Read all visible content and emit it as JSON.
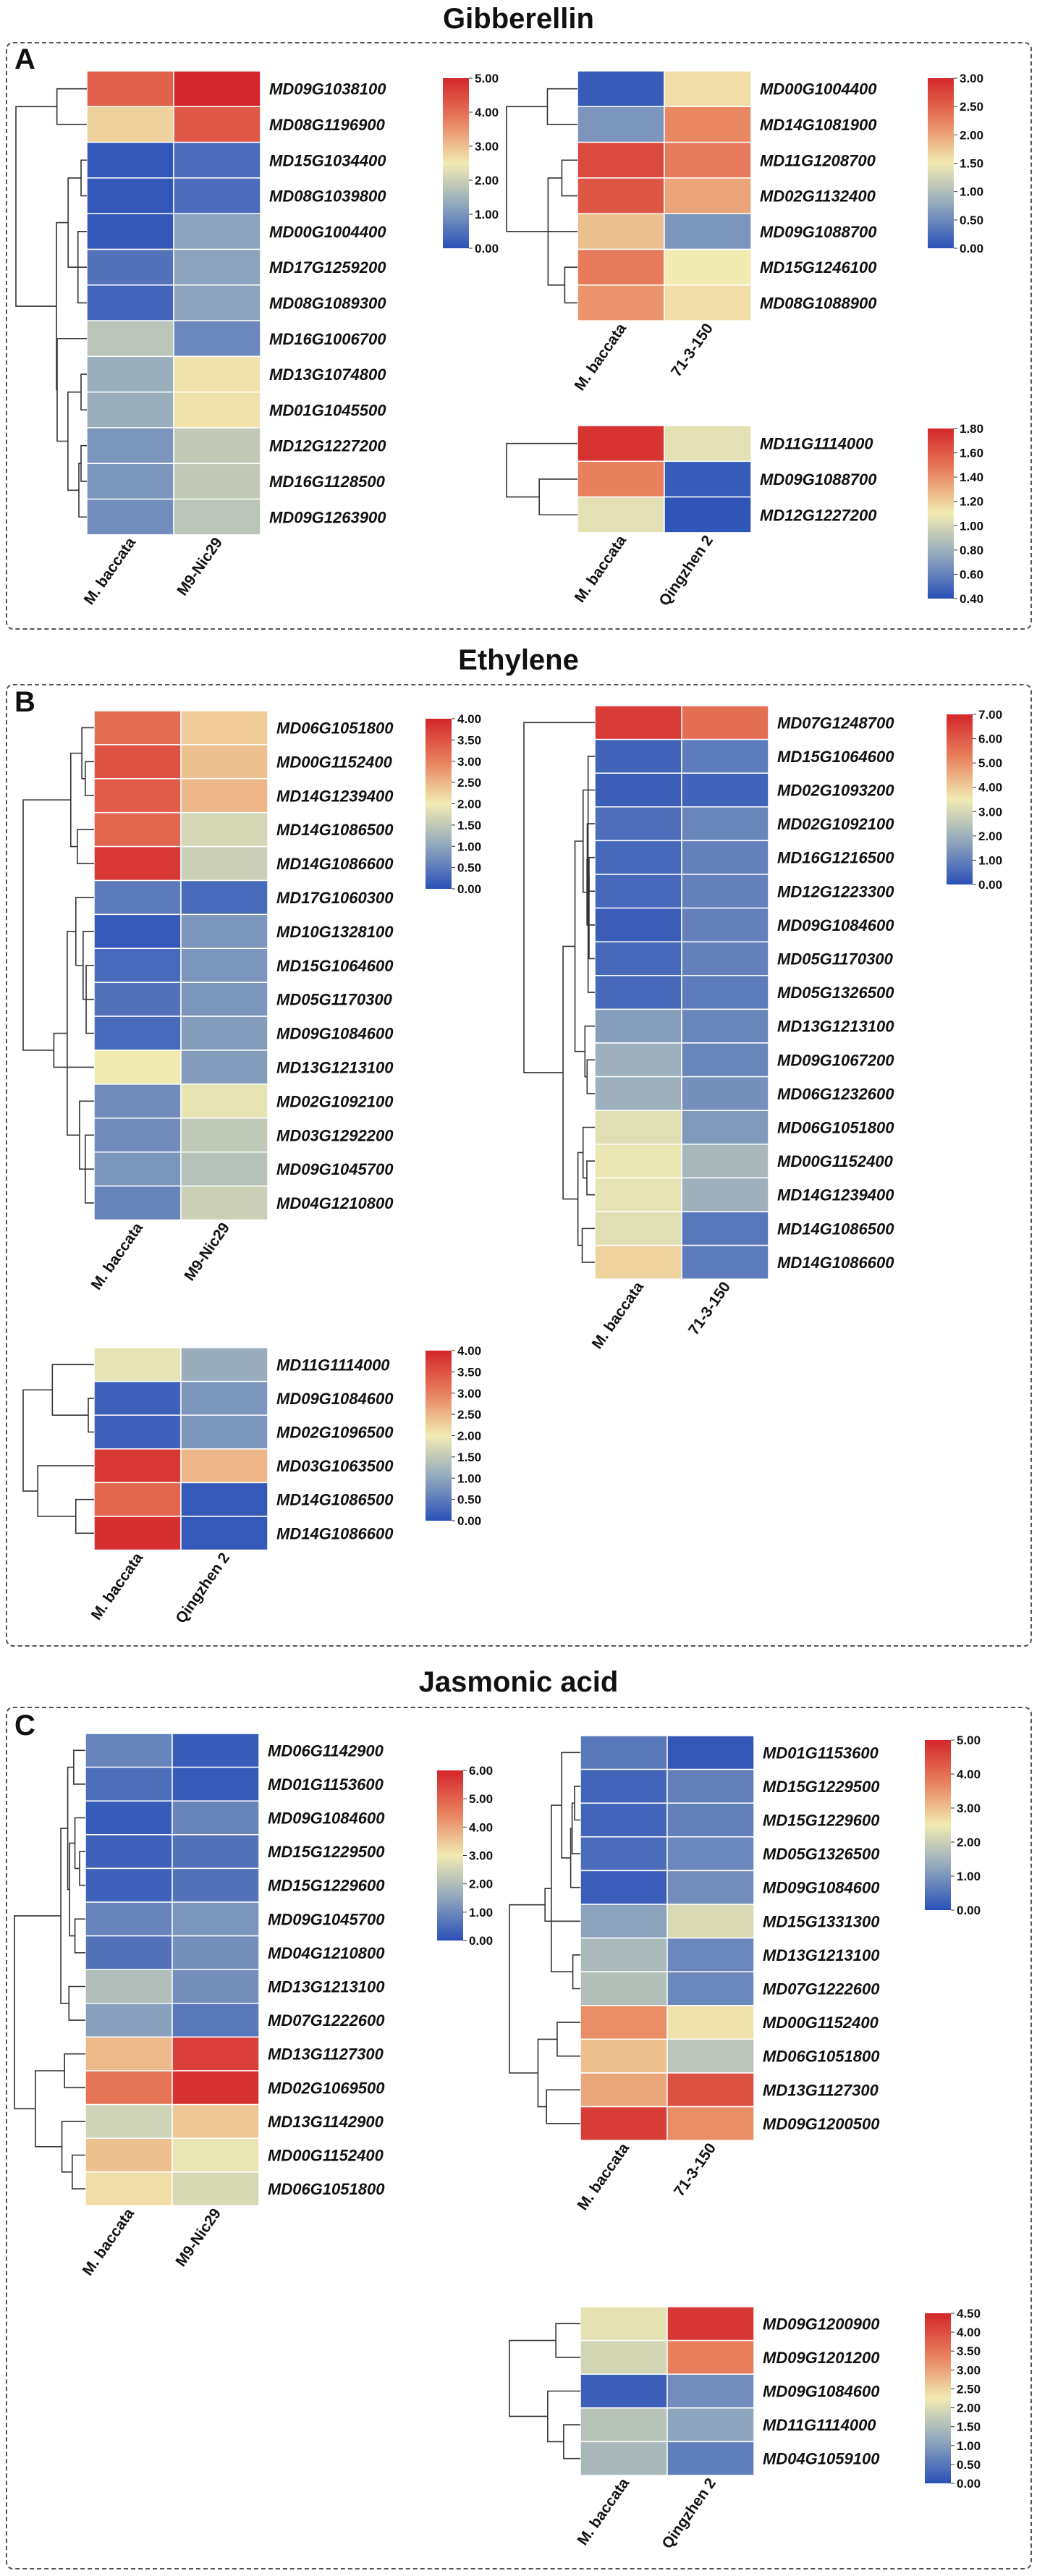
{
  "sections": [
    {
      "letter": "A",
      "title": "Gibberellin"
    },
    {
      "letter": "B",
      "title": "Ethylene"
    },
    {
      "letter": "C",
      "title": "Jasmonic acid"
    }
  ],
  "chart_data": [
    {
      "id": "gib1",
      "type": "heatmap",
      "section": "A",
      "columns": [
        "M. baccata",
        "M9-Nic29"
      ],
      "rows": [
        "MD09G1038100",
        "MD08G1196900",
        "MD15G1034400",
        "MD08G1039800",
        "MD00G1004400",
        "MD17G1259200",
        "MD08G1089300",
        "MD16G1006700",
        "MD13G1074800",
        "MD01G1045500",
        "MD12G1227200",
        "MD16G1128500",
        "MD09G1263900"
      ],
      "values": [
        [
          4.2,
          5.0
        ],
        [
          2.8,
          4.3
        ],
        [
          0.1,
          0.4
        ],
        [
          0.1,
          0.4
        ],
        [
          0.1,
          1.2
        ],
        [
          0.5,
          1.2
        ],
        [
          0.3,
          1.2
        ],
        [
          1.8,
          0.8
        ],
        [
          1.4,
          2.6
        ],
        [
          1.4,
          2.6
        ],
        [
          1.0,
          1.9
        ],
        [
          1.0,
          1.9
        ],
        [
          0.9,
          1.8
        ]
      ],
      "colorbar": {
        "min": 0.0,
        "max": 5.0,
        "ticks": [
          "5.00",
          "4.00",
          "3.00",
          "2.00",
          "1.00",
          "0.00"
        ]
      }
    },
    {
      "id": "gib2",
      "type": "heatmap",
      "section": "A",
      "columns": [
        "M. baccata",
        "71-3-150"
      ],
      "rows": [
        "MD00G1004400",
        "MD14G1081900",
        "MD11G1208700",
        "MD02G1132400",
        "MD09G1088700",
        "MD15G1246100",
        "MD08G1088900"
      ],
      "values": [
        [
          0.1,
          1.6
        ],
        [
          0.6,
          2.2
        ],
        [
          2.7,
          2.3
        ],
        [
          2.6,
          2.0
        ],
        [
          1.8,
          0.6
        ],
        [
          2.3,
          1.5
        ],
        [
          2.1,
          1.6
        ]
      ],
      "colorbar": {
        "min": 0.0,
        "max": 3.0,
        "ticks": [
          "3.00",
          "2.50",
          "2.00",
          "1.50",
          "1.00",
          "0.50",
          "0.00"
        ]
      }
    },
    {
      "id": "gib3",
      "type": "heatmap",
      "section": "A",
      "columns": [
        "M. baccata",
        "Qingzhen 2"
      ],
      "rows": [
        "MD11G1114000",
        "MD09G1088700",
        "MD12G1227200"
      ],
      "values": [
        [
          1.75,
          1.05
        ],
        [
          1.45,
          0.45
        ],
        [
          1.05,
          0.42
        ]
      ],
      "colorbar": {
        "min": 0.4,
        "max": 1.8,
        "ticks": [
          "1.80",
          "1.60",
          "1.40",
          "1.20",
          "1.00",
          "0.80",
          "0.60",
          "0.40"
        ]
      }
    },
    {
      "id": "eth1",
      "type": "heatmap",
      "section": "B",
      "columns": [
        "M. baccata",
        "M9-Nic29"
      ],
      "rows": [
        "MD06G1051800",
        "MD00G1152400",
        "MD14G1239400",
        "MD14G1086500",
        "MD14G1086600",
        "MD17G1060300",
        "MD10G1328100",
        "MD15G1064600",
        "MD05G1170300",
        "MD09G1084600",
        "MD13G1213100",
        "MD02G1092100",
        "MD03G1292200",
        "MD09G1045700",
        "MD04G1210800"
      ],
      "values": [
        [
          3.2,
          2.3
        ],
        [
          3.5,
          2.4
        ],
        [
          3.4,
          2.5
        ],
        [
          3.3,
          1.7
        ],
        [
          3.8,
          1.6
        ],
        [
          0.5,
          0.3
        ],
        [
          0.1,
          0.8
        ],
        [
          0.3,
          0.8
        ],
        [
          0.4,
          0.8
        ],
        [
          0.3,
          0.9
        ],
        [
          2.0,
          0.9
        ],
        [
          0.7,
          1.9
        ],
        [
          0.7,
          1.5
        ],
        [
          0.8,
          1.4
        ],
        [
          0.6,
          1.6
        ]
      ],
      "colorbar": {
        "min": 0.0,
        "max": 4.0,
        "ticks": [
          "4.00",
          "3.50",
          "3.00",
          "2.50",
          "2.00",
          "1.50",
          "1.00",
          "0.50",
          "0.00"
        ]
      }
    },
    {
      "id": "eth2",
      "type": "heatmap",
      "section": "B",
      "columns": [
        "M. baccata",
        "71-3-150"
      ],
      "rows": [
        "MD07G1248700",
        "MD15G1064600",
        "MD02G1093200",
        "MD02G1092100",
        "MD16G1216500",
        "MD12G1223300",
        "MD09G1084600",
        "MD05G1170300",
        "MD05G1326500",
        "MD13G1213100",
        "MD09G1067200",
        "MD06G1232600",
        "MD06G1051800",
        "MD00G1152400",
        "MD14G1239400",
        "MD14G1086500",
        "MD14G1086600"
      ],
      "values": [
        [
          6.6,
          5.6
        ],
        [
          0.4,
          0.9
        ],
        [
          0.3,
          0.4
        ],
        [
          0.6,
          1.1
        ],
        [
          0.5,
          1.0
        ],
        [
          0.5,
          1.0
        ],
        [
          0.3,
          1.0
        ],
        [
          0.5,
          1.0
        ],
        [
          0.5,
          0.9
        ],
        [
          1.6,
          1.1
        ],
        [
          2.0,
          1.1
        ],
        [
          2.0,
          1.3
        ],
        [
          3.2,
          1.5
        ],
        [
          3.4,
          2.2
        ],
        [
          3.3,
          2.0
        ],
        [
          3.2,
          0.8
        ],
        [
          3.9,
          0.9
        ]
      ],
      "colorbar": {
        "min": 0.0,
        "max": 7.0,
        "ticks": [
          "7.00",
          "6.00",
          "5.00",
          "4.00",
          "3.00",
          "2.00",
          "1.00",
          "0.00"
        ]
      }
    },
    {
      "id": "eth3",
      "type": "heatmap",
      "section": "B",
      "columns": [
        "M. baccata",
        "Qingzhen 2"
      ],
      "rows": [
        "MD11G1114000",
        "MD09G1084600",
        "MD02G1096500",
        "MD03G1063500",
        "MD14G1086500",
        "MD14G1086600"
      ],
      "values": [
        [
          1.9,
          1.1
        ],
        [
          0.2,
          0.8
        ],
        [
          0.2,
          0.8
        ],
        [
          3.8,
          2.5
        ],
        [
          3.3,
          0.1
        ],
        [
          3.9,
          0.1
        ]
      ],
      "colorbar": {
        "min": 0.0,
        "max": 4.0,
        "ticks": [
          "4.00",
          "3.50",
          "3.00",
          "2.50",
          "2.00",
          "1.50",
          "1.00",
          "0.50",
          "0.00"
        ]
      }
    },
    {
      "id": "jas1",
      "type": "heatmap",
      "section": "C",
      "columns": [
        "M. baccata",
        "M9-Nic29"
      ],
      "rows": [
        "MD06G1142900",
        "MD01G1153600",
        "MD09G1084600",
        "MD15G1229500",
        "MD15G1229600",
        "MD09G1045700",
        "MD04G1210800",
        "MD13G1213100",
        "MD07G1222600",
        "MD13G1127300",
        "MD02G1069500",
        "MD13G1142900",
        "MD00G1152400",
        "MD06G1051800"
      ],
      "values": [
        [
          0.9,
          0.2
        ],
        [
          0.5,
          0.2
        ],
        [
          0.2,
          0.9
        ],
        [
          0.3,
          0.6
        ],
        [
          0.3,
          0.6
        ],
        [
          0.9,
          1.2
        ],
        [
          0.6,
          1.1
        ],
        [
          2.0,
          1.1
        ],
        [
          1.4,
          0.7
        ],
        [
          3.7,
          5.6
        ],
        [
          4.7,
          5.8
        ],
        [
          2.5,
          3.5
        ],
        [
          3.6,
          2.9
        ],
        [
          3.2,
          2.6
        ]
      ],
      "colorbar": {
        "min": 0.0,
        "max": 6.0,
        "ticks": [
          "6.00",
          "5.00",
          "4.00",
          "3.00",
          "2.00",
          "1.00",
          "0.00"
        ]
      }
    },
    {
      "id": "jas2",
      "type": "heatmap",
      "section": "C",
      "columns": [
        "M. baccata",
        "71-3-150"
      ],
      "rows": [
        "MD01G1153600",
        "MD15G1229500",
        "MD15G1229600",
        "MD05G1326500",
        "MD09G1084600",
        "MD15G1331300",
        "MD13G1213100",
        "MD07G1222600",
        "MD00G1152400",
        "MD06G1051800",
        "MD13G1127300",
        "MD09G1200500"
      ],
      "values": [
        [
          0.6,
          0.1
        ],
        [
          0.3,
          0.7
        ],
        [
          0.3,
          0.7
        ],
        [
          0.4,
          0.8
        ],
        [
          0.2,
          0.9
        ],
        [
          1.2,
          2.2
        ],
        [
          1.6,
          0.8
        ],
        [
          1.7,
          0.8
        ],
        [
          3.6,
          2.6
        ],
        [
          3.0,
          1.8
        ],
        [
          3.3,
          4.4
        ],
        [
          4.7,
          3.6
        ]
      ],
      "colorbar": {
        "min": 0.0,
        "max": 5.0,
        "ticks": [
          "5.00",
          "4.00",
          "3.00",
          "2.00",
          "1.00",
          "0.00"
        ]
      }
    },
    {
      "id": "jas3",
      "type": "heatmap",
      "section": "C",
      "columns": [
        "M. baccata",
        "Qingzhen 2"
      ],
      "rows": [
        "MD09G1200900",
        "MD09G1201200",
        "MD09G1084600",
        "MD11G1114000",
        "MD04G1059100"
      ],
      "values": [
        [
          2.1,
          4.3
        ],
        [
          1.9,
          3.4
        ],
        [
          0.2,
          0.8
        ],
        [
          1.6,
          1.1
        ],
        [
          1.4,
          0.6
        ]
      ],
      "colorbar": {
        "min": 0.0,
        "max": 4.5,
        "ticks": [
          "4.50",
          "4.00",
          "3.50",
          "3.00",
          "2.50",
          "2.00",
          "1.50",
          "1.00",
          "0.50",
          "0.00"
        ]
      }
    }
  ]
}
